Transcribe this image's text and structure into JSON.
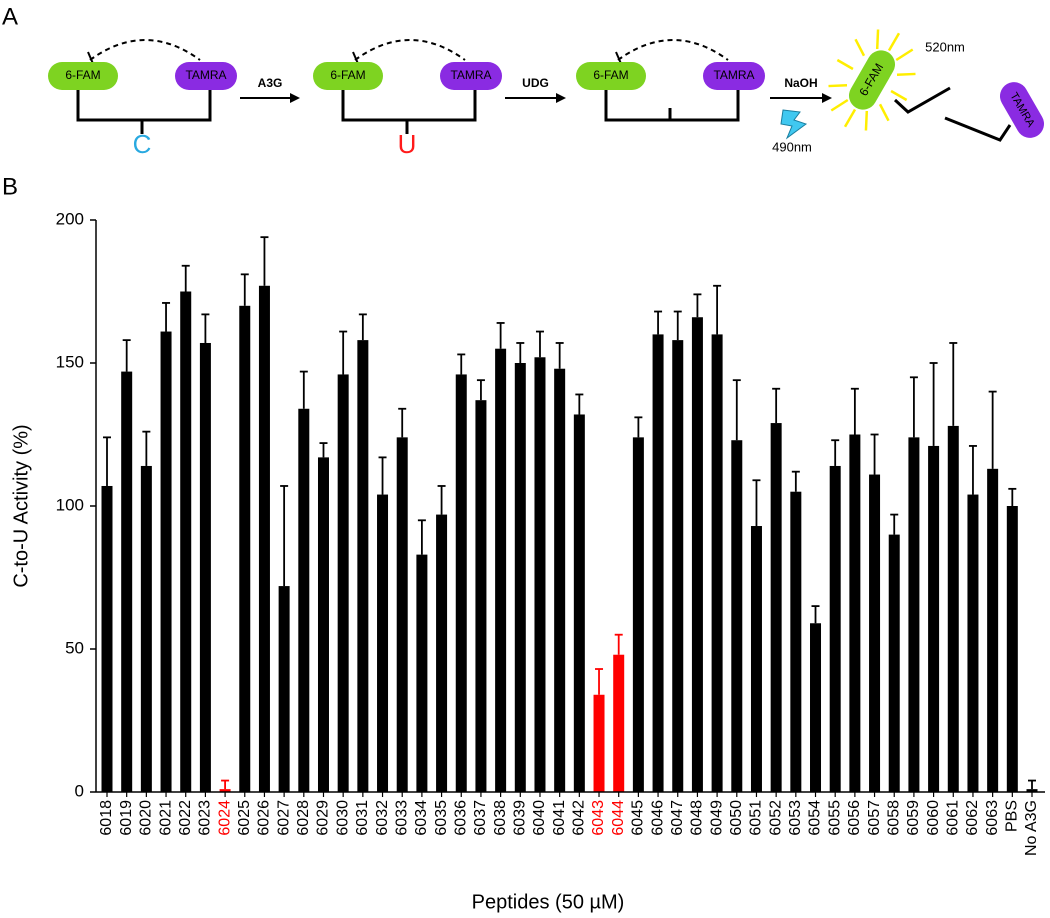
{
  "panel_labels": [
    "A",
    "B"
  ],
  "diagram": {
    "donor": "6-FAM",
    "acceptor": "TAMRA",
    "steps": [
      "A3G",
      "UDG",
      "NaOH"
    ],
    "bases": [
      "C",
      "U"
    ],
    "emission": "520nm",
    "excitation": "490nm"
  },
  "chart_data": {
    "type": "bar",
    "x_label": "Peptides (50  µM)",
    "y_label": "C-to-U Activity (%)",
    "categories": [
      "6018",
      "6019",
      "6020",
      "6021",
      "6022",
      "6023",
      "6024",
      "6025",
      "6026",
      "6027",
      "6028",
      "6029",
      "6030",
      "6031",
      "6032",
      "6033",
      "6034",
      "6035",
      "6036",
      "6037",
      "6038",
      "6039",
      "6040",
      "6041",
      "6042",
      "6043",
      "6044",
      "6045",
      "6046",
      "6047",
      "6048",
      "6049",
      "6050",
      "6051",
      "6052",
      "6053",
      "6054",
      "6055",
      "6056",
      "6057",
      "6058",
      "6059",
      "6060",
      "6061",
      "6062",
      "6063",
      "PBS",
      "No A3G"
    ],
    "values": [
      107,
      147,
      114,
      161,
      175,
      157,
      1,
      170,
      177,
      72,
      134,
      117,
      146,
      158,
      104,
      124,
      83,
      97,
      146,
      137,
      155,
      150,
      152,
      148,
      132,
      34,
      48,
      124,
      160,
      158,
      166,
      160,
      123,
      93,
      129,
      105,
      59,
      114,
      125,
      111,
      90,
      124,
      121,
      128,
      104,
      113,
      100,
      1
    ],
    "errors": [
      17,
      11,
      12,
      10,
      9,
      10,
      3,
      11,
      17,
      35,
      13,
      5,
      15,
      9,
      13,
      10,
      12,
      10,
      7,
      7,
      9,
      7,
      9,
      9,
      7,
      9,
      7,
      7,
      8,
      10,
      8,
      17,
      21,
      16,
      12,
      7,
      6,
      9,
      16,
      14,
      7,
      21,
      29,
      29,
      17,
      27,
      6,
      3
    ],
    "colors": [
      "#000000",
      "#000000",
      "#000000",
      "#000000",
      "#000000",
      "#000000",
      "#ff0000",
      "#000000",
      "#000000",
      "#000000",
      "#000000",
      "#000000",
      "#000000",
      "#000000",
      "#000000",
      "#000000",
      "#000000",
      "#000000",
      "#000000",
      "#000000",
      "#000000",
      "#000000",
      "#000000",
      "#000000",
      "#000000",
      "#ff0000",
      "#ff0000",
      "#000000",
      "#000000",
      "#000000",
      "#000000",
      "#000000",
      "#000000",
      "#000000",
      "#000000",
      "#000000",
      "#000000",
      "#000000",
      "#000000",
      "#000000",
      "#000000",
      "#000000",
      "#000000",
      "#000000",
      "#000000",
      "#000000",
      "#000000",
      "#000000"
    ],
    "ylim": [
      0,
      200
    ],
    "yticks": [
      0,
      50,
      100,
      150,
      200
    ]
  }
}
